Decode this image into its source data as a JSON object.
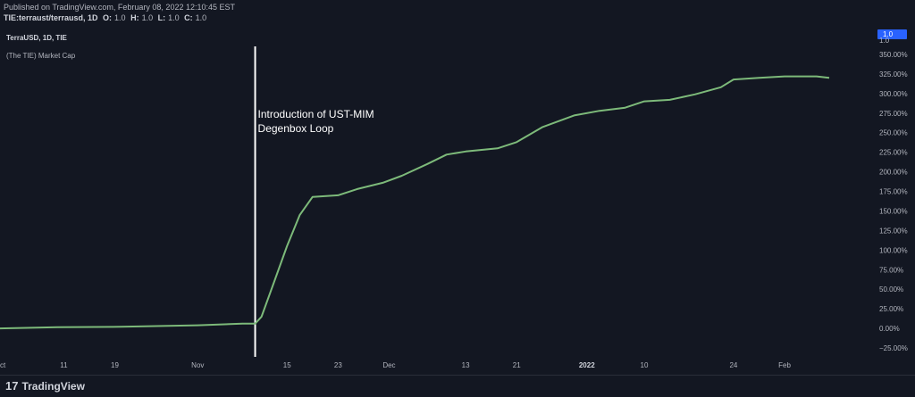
{
  "header": {
    "published": "Published on TradingView.com, February 08, 2022 12:10:45 EST",
    "symbol": "TIE:terraust/terrausd, 1D",
    "ohlc": [
      {
        "k": "O:",
        "v": "1.0"
      },
      {
        "k": "H:",
        "v": "1.0"
      },
      {
        "k": "L:",
        "v": "1.0"
      },
      {
        "k": "C:",
        "v": "1.0"
      }
    ]
  },
  "legend": {
    "title": "TerraUSD, 1D, TIE",
    "indicator": "(The TIE) Market Cap"
  },
  "price_label": "1.0",
  "footer": {
    "brand": "TradingView",
    "mark": "17"
  },
  "colors": {
    "background": "#131722",
    "line": "#7dba7a",
    "marker": "#ffffff",
    "price_tag": "#2962ff"
  },
  "chart_data": {
    "type": "line",
    "title": "",
    "xlabel": "",
    "ylabel": "",
    "ylim": [
      -25,
      350
    ],
    "y_ticks": [
      -25,
      0,
      25,
      50,
      75,
      100,
      125,
      150,
      175,
      200,
      225,
      250,
      275,
      300,
      325,
      350
    ],
    "y_tick_labels": [
      "−25.00%",
      "0.00%",
      "25.00%",
      "50.00%",
      "75.00%",
      "100.00%",
      "125.00%",
      "150.00%",
      "175.00%",
      "200.00%",
      "225.00%",
      "250.00%",
      "275.00%",
      "300.00%",
      "325.00%",
      "350.00%"
    ],
    "y_top_label": "1.0",
    "x_range": [
      "2021-10-01",
      "2022-02-15"
    ],
    "x_ticks": [
      {
        "date": "2021-10-01",
        "label": "ct",
        "bold": false
      },
      {
        "date": "2021-10-11",
        "label": "11",
        "bold": false
      },
      {
        "date": "2021-10-19",
        "label": "19",
        "bold": false
      },
      {
        "date": "2021-11-01",
        "label": "Nov",
        "bold": false
      },
      {
        "date": "2021-11-15",
        "label": "15",
        "bold": false
      },
      {
        "date": "2021-11-23",
        "label": "23",
        "bold": false
      },
      {
        "date": "2021-12-01",
        "label": "Dec",
        "bold": false
      },
      {
        "date": "2021-12-13",
        "label": "13",
        "bold": false
      },
      {
        "date": "2021-12-21",
        "label": "21",
        "bold": false
      },
      {
        "date": "2022-01-01",
        "label": "2022",
        "bold": true
      },
      {
        "date": "2022-01-10",
        "label": "10",
        "bold": false
      },
      {
        "date": "2022-01-24",
        "label": "24",
        "bold": false
      },
      {
        "date": "2022-02-01",
        "label": "Feb",
        "bold": false
      }
    ],
    "series": [
      {
        "values": [
          {
            "x": "2021-10-01",
            "y": 0
          },
          {
            "x": "2021-10-10",
            "y": 1.5
          },
          {
            "x": "2021-10-20",
            "y": 2
          },
          {
            "x": "2021-11-01",
            "y": 4
          },
          {
            "x": "2021-11-08",
            "y": 6
          },
          {
            "x": "2021-11-10",
            "y": 6
          },
          {
            "x": "2021-11-11",
            "y": 15
          },
          {
            "x": "2021-11-13",
            "y": 60
          },
          {
            "x": "2021-11-15",
            "y": 105
          },
          {
            "x": "2021-11-17",
            "y": 145
          },
          {
            "x": "2021-11-19",
            "y": 168
          },
          {
            "x": "2021-11-23",
            "y": 170
          },
          {
            "x": "2021-11-26",
            "y": 178
          },
          {
            "x": "2021-11-30",
            "y": 186
          },
          {
            "x": "2021-12-03",
            "y": 195
          },
          {
            "x": "2021-12-07",
            "y": 210
          },
          {
            "x": "2021-12-10",
            "y": 222
          },
          {
            "x": "2021-12-13",
            "y": 226
          },
          {
            "x": "2021-12-18",
            "y": 230
          },
          {
            "x": "2021-12-21",
            "y": 238
          },
          {
            "x": "2021-12-25",
            "y": 257
          },
          {
            "x": "2021-12-30",
            "y": 272
          },
          {
            "x": "2022-01-03",
            "y": 278
          },
          {
            "x": "2022-01-07",
            "y": 282
          },
          {
            "x": "2022-01-10",
            "y": 290
          },
          {
            "x": "2022-01-14",
            "y": 292
          },
          {
            "x": "2022-01-18",
            "y": 299
          },
          {
            "x": "2022-01-22",
            "y": 308
          },
          {
            "x": "2022-01-24",
            "y": 318
          },
          {
            "x": "2022-01-28",
            "y": 320
          },
          {
            "x": "2022-02-01",
            "y": 322
          },
          {
            "x": "2022-02-06",
            "y": 322
          },
          {
            "x": "2022-02-08",
            "y": 320
          }
        ]
      }
    ],
    "annotation": {
      "date": "2021-11-10",
      "lines": [
        "Introduction of UST-MIM",
        "Degenbox Loop"
      ]
    },
    "grid": false,
    "legend": "top-left"
  }
}
